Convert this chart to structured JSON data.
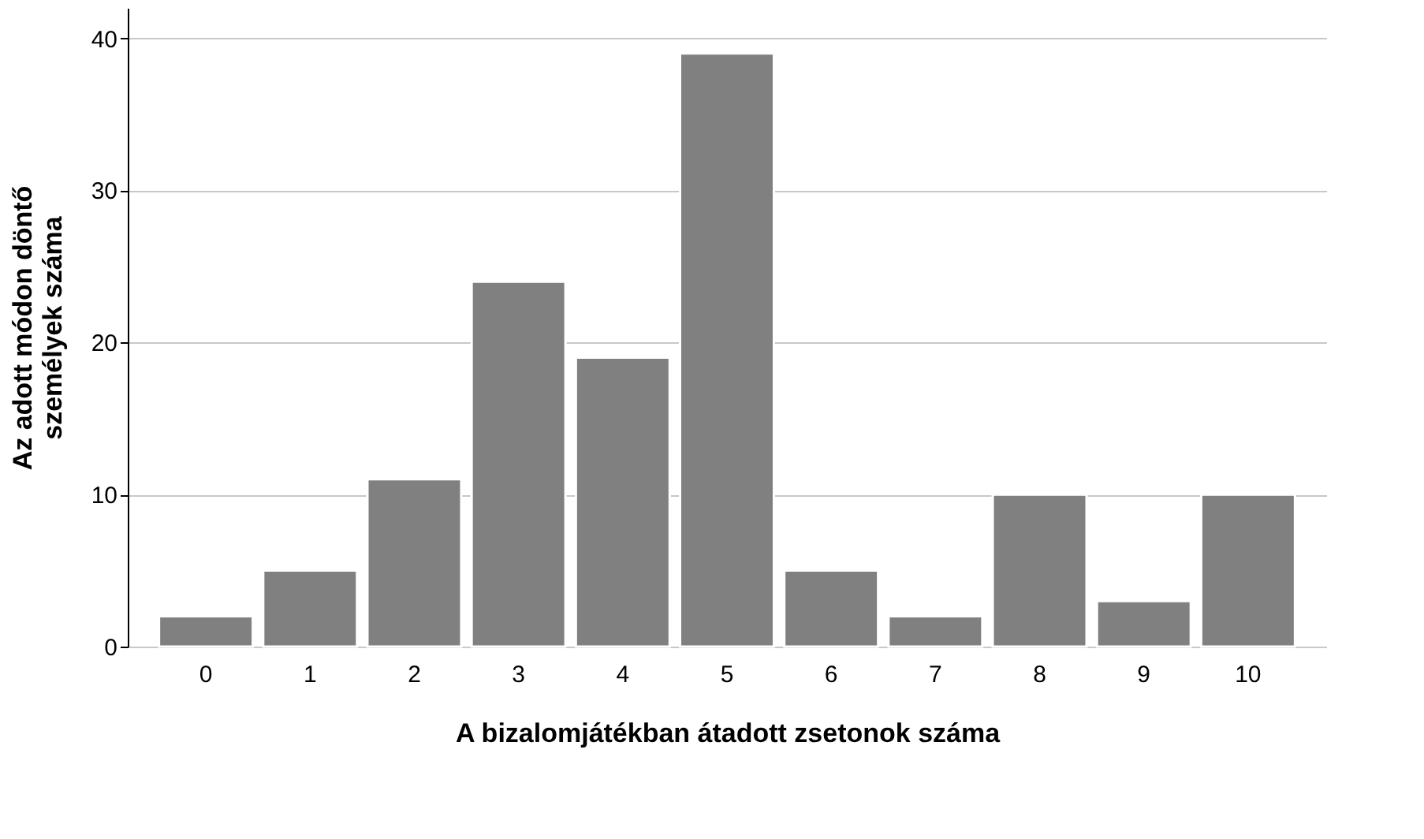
{
  "chart_data": {
    "type": "bar",
    "xlabel": "A bizalomjátékban átadott zsetonok száma",
    "ylabel": "Az adott módon döntő\nszemélyek száma",
    "categories": [
      "0",
      "1",
      "2",
      "3",
      "4",
      "5",
      "6",
      "7",
      "8",
      "9",
      "10"
    ],
    "values": [
      2,
      5,
      11,
      24,
      19,
      39,
      5,
      2,
      10,
      3,
      10
    ],
    "color": "#808080",
    "ylim": [
      0,
      42
    ],
    "yticks": [
      0,
      10,
      20,
      30,
      40
    ],
    "grid": "y"
  }
}
